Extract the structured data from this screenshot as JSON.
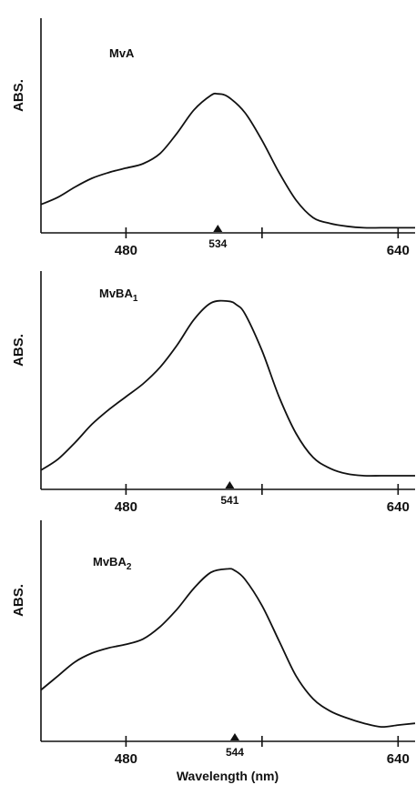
{
  "chart_data": [
    {
      "type": "line",
      "title": "MvA",
      "title_parts": [
        "MvA"
      ],
      "ylabel": "ABS.",
      "peak_label": "534",
      "peak_x": 534,
      "xticks": [
        {
          "value": 480,
          "label": "480"
        },
        {
          "value": 640,
          "label": "640"
        }
      ],
      "xlim": [
        430,
        650
      ],
      "ylim": [
        0,
        1
      ],
      "grid": false,
      "x": [
        430,
        440,
        450,
        460,
        470,
        480,
        490,
        500,
        510,
        520,
        530,
        534,
        540,
        550,
        560,
        570,
        580,
        590,
        600,
        610,
        620,
        630,
        640,
        650
      ],
      "values": [
        0.17,
        0.22,
        0.29,
        0.35,
        0.39,
        0.42,
        0.45,
        0.52,
        0.66,
        0.82,
        0.92,
        0.93,
        0.91,
        0.8,
        0.61,
        0.39,
        0.2,
        0.08,
        0.04,
        0.02,
        0.01,
        0.01,
        0.01,
        0.01
      ],
      "color": "#111111"
    },
    {
      "type": "line",
      "title": "MvBA1",
      "title_parts": [
        "MvBA",
        "1"
      ],
      "ylabel": "ABS.",
      "peak_label": "541",
      "peak_x": 541,
      "xticks": [
        {
          "value": 480,
          "label": "480"
        },
        {
          "value": 640,
          "label": "640"
        }
      ],
      "xlim": [
        430,
        650
      ],
      "ylim": [
        0,
        1
      ],
      "grid": false,
      "x": [
        430,
        440,
        450,
        460,
        470,
        480,
        490,
        500,
        510,
        520,
        530,
        540,
        545,
        550,
        560,
        570,
        580,
        590,
        600,
        610,
        620,
        630,
        640,
        650
      ],
      "values": [
        0.05,
        0.11,
        0.2,
        0.3,
        0.38,
        0.45,
        0.52,
        0.61,
        0.73,
        0.87,
        0.96,
        0.97,
        0.95,
        0.9,
        0.7,
        0.45,
        0.25,
        0.12,
        0.06,
        0.03,
        0.02,
        0.02,
        0.02,
        0.02
      ],
      "color": "#111111"
    },
    {
      "type": "line",
      "title": "MvBA2",
      "title_parts": [
        "MvBA",
        "2"
      ],
      "ylabel": "ABS.",
      "peak_label": "544",
      "peak_x": 544,
      "xticks": [
        {
          "value": 480,
          "label": "480"
        },
        {
          "value": 640,
          "label": "640"
        }
      ],
      "xlim": [
        430,
        650
      ],
      "ylim": [
        0,
        1
      ],
      "grid": false,
      "x": [
        430,
        440,
        450,
        460,
        470,
        480,
        490,
        500,
        510,
        520,
        530,
        540,
        544,
        550,
        560,
        570,
        580,
        590,
        600,
        610,
        620,
        630,
        640,
        650
      ],
      "values": [
        0.22,
        0.3,
        0.38,
        0.43,
        0.46,
        0.48,
        0.51,
        0.58,
        0.68,
        0.8,
        0.89,
        0.91,
        0.9,
        0.85,
        0.7,
        0.5,
        0.3,
        0.17,
        0.1,
        0.06,
        0.03,
        0.01,
        0.02,
        0.03
      ],
      "color": "#111111"
    }
  ],
  "shared_xlabel": "Wavelength (nm)"
}
